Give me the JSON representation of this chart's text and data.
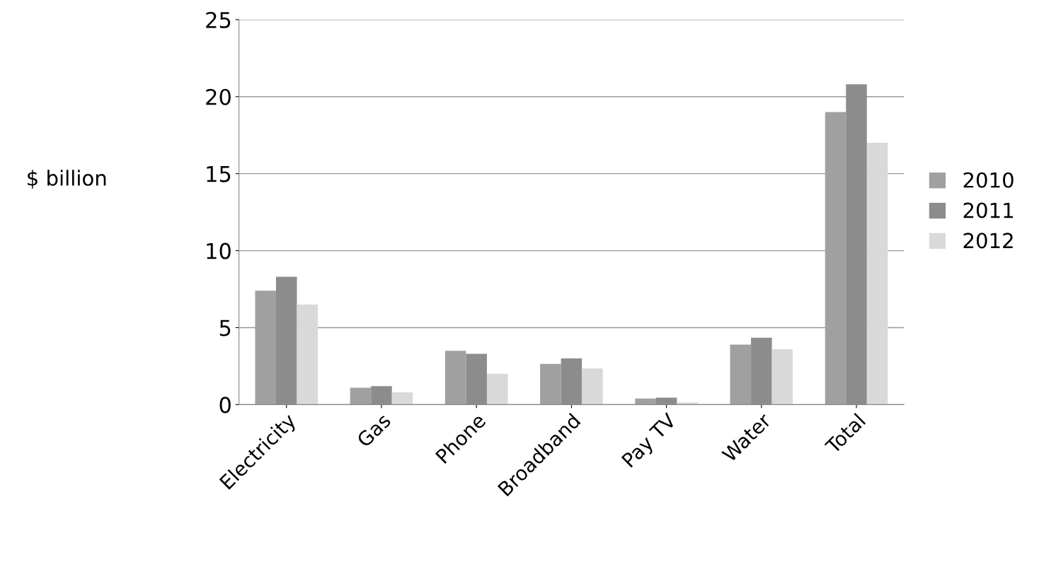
{
  "chart_data": {
    "type": "bar",
    "ylabel": "$ billion",
    "categories": [
      "Electricity",
      "Gas",
      "Phone",
      "Broadband",
      "Pay TV",
      "Water",
      "Total"
    ],
    "series": [
      {
        "name": "2010",
        "color": "#a0a0a0",
        "values": [
          7.4,
          1.1,
          3.5,
          2.65,
          0.4,
          3.9,
          19.0
        ]
      },
      {
        "name": "2011",
        "color": "#8c8c8c",
        "values": [
          8.3,
          1.2,
          3.3,
          3.0,
          0.45,
          4.35,
          20.8
        ]
      },
      {
        "name": "2012",
        "color": "#d9d9d9",
        "values": [
          6.5,
          0.8,
          2.0,
          2.35,
          0.15,
          3.6,
          17.0
        ]
      }
    ],
    "ylim": [
      0,
      25
    ],
    "yticks": [
      0,
      5,
      10,
      15,
      20,
      25
    ],
    "grid": "y",
    "legend": "right"
  }
}
